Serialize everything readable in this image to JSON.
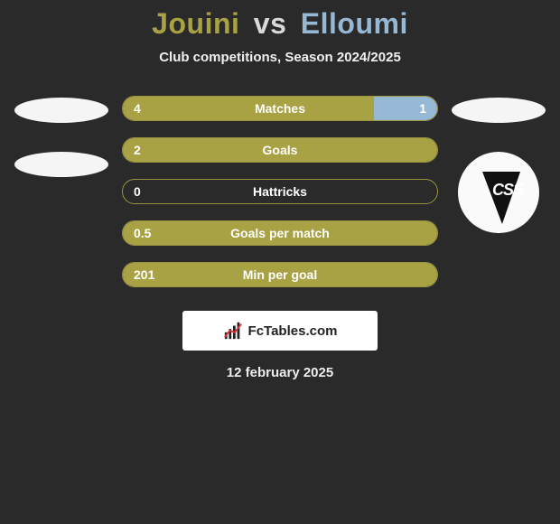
{
  "title": {
    "player1": "Jouini",
    "vs": "vs",
    "player2": "Elloumi"
  },
  "subtitle": "Club competitions, Season 2024/2025",
  "colors": {
    "p1": "#a9a244",
    "p2": "#96b8d4",
    "p1_border": "#9a9340",
    "p2_border": "#7ea3c3",
    "bg": "#2a2a2a",
    "text": "#ffffff"
  },
  "logos": {
    "left": [
      {
        "type": "ellipse"
      },
      {
        "type": "ellipse"
      }
    ],
    "right": [
      {
        "type": "ellipse"
      },
      {
        "type": "club",
        "text": "CSS"
      }
    ]
  },
  "stats": [
    {
      "label": "Matches",
      "val_left": "4",
      "val_right": "1",
      "left_pct": 80,
      "right_pct": 20
    },
    {
      "label": "Goals",
      "val_left": "2",
      "val_right": "",
      "left_pct": 100,
      "right_pct": 0
    },
    {
      "label": "Hattricks",
      "val_left": "0",
      "val_right": "",
      "left_pct": 0,
      "right_pct": 0
    },
    {
      "label": "Goals per match",
      "val_left": "0.5",
      "val_right": "",
      "left_pct": 100,
      "right_pct": 0
    },
    {
      "label": "Min per goal",
      "val_left": "201",
      "val_right": "",
      "left_pct": 100,
      "right_pct": 0
    }
  ],
  "watermark": "FcTables.com",
  "date": "12 february 2025"
}
